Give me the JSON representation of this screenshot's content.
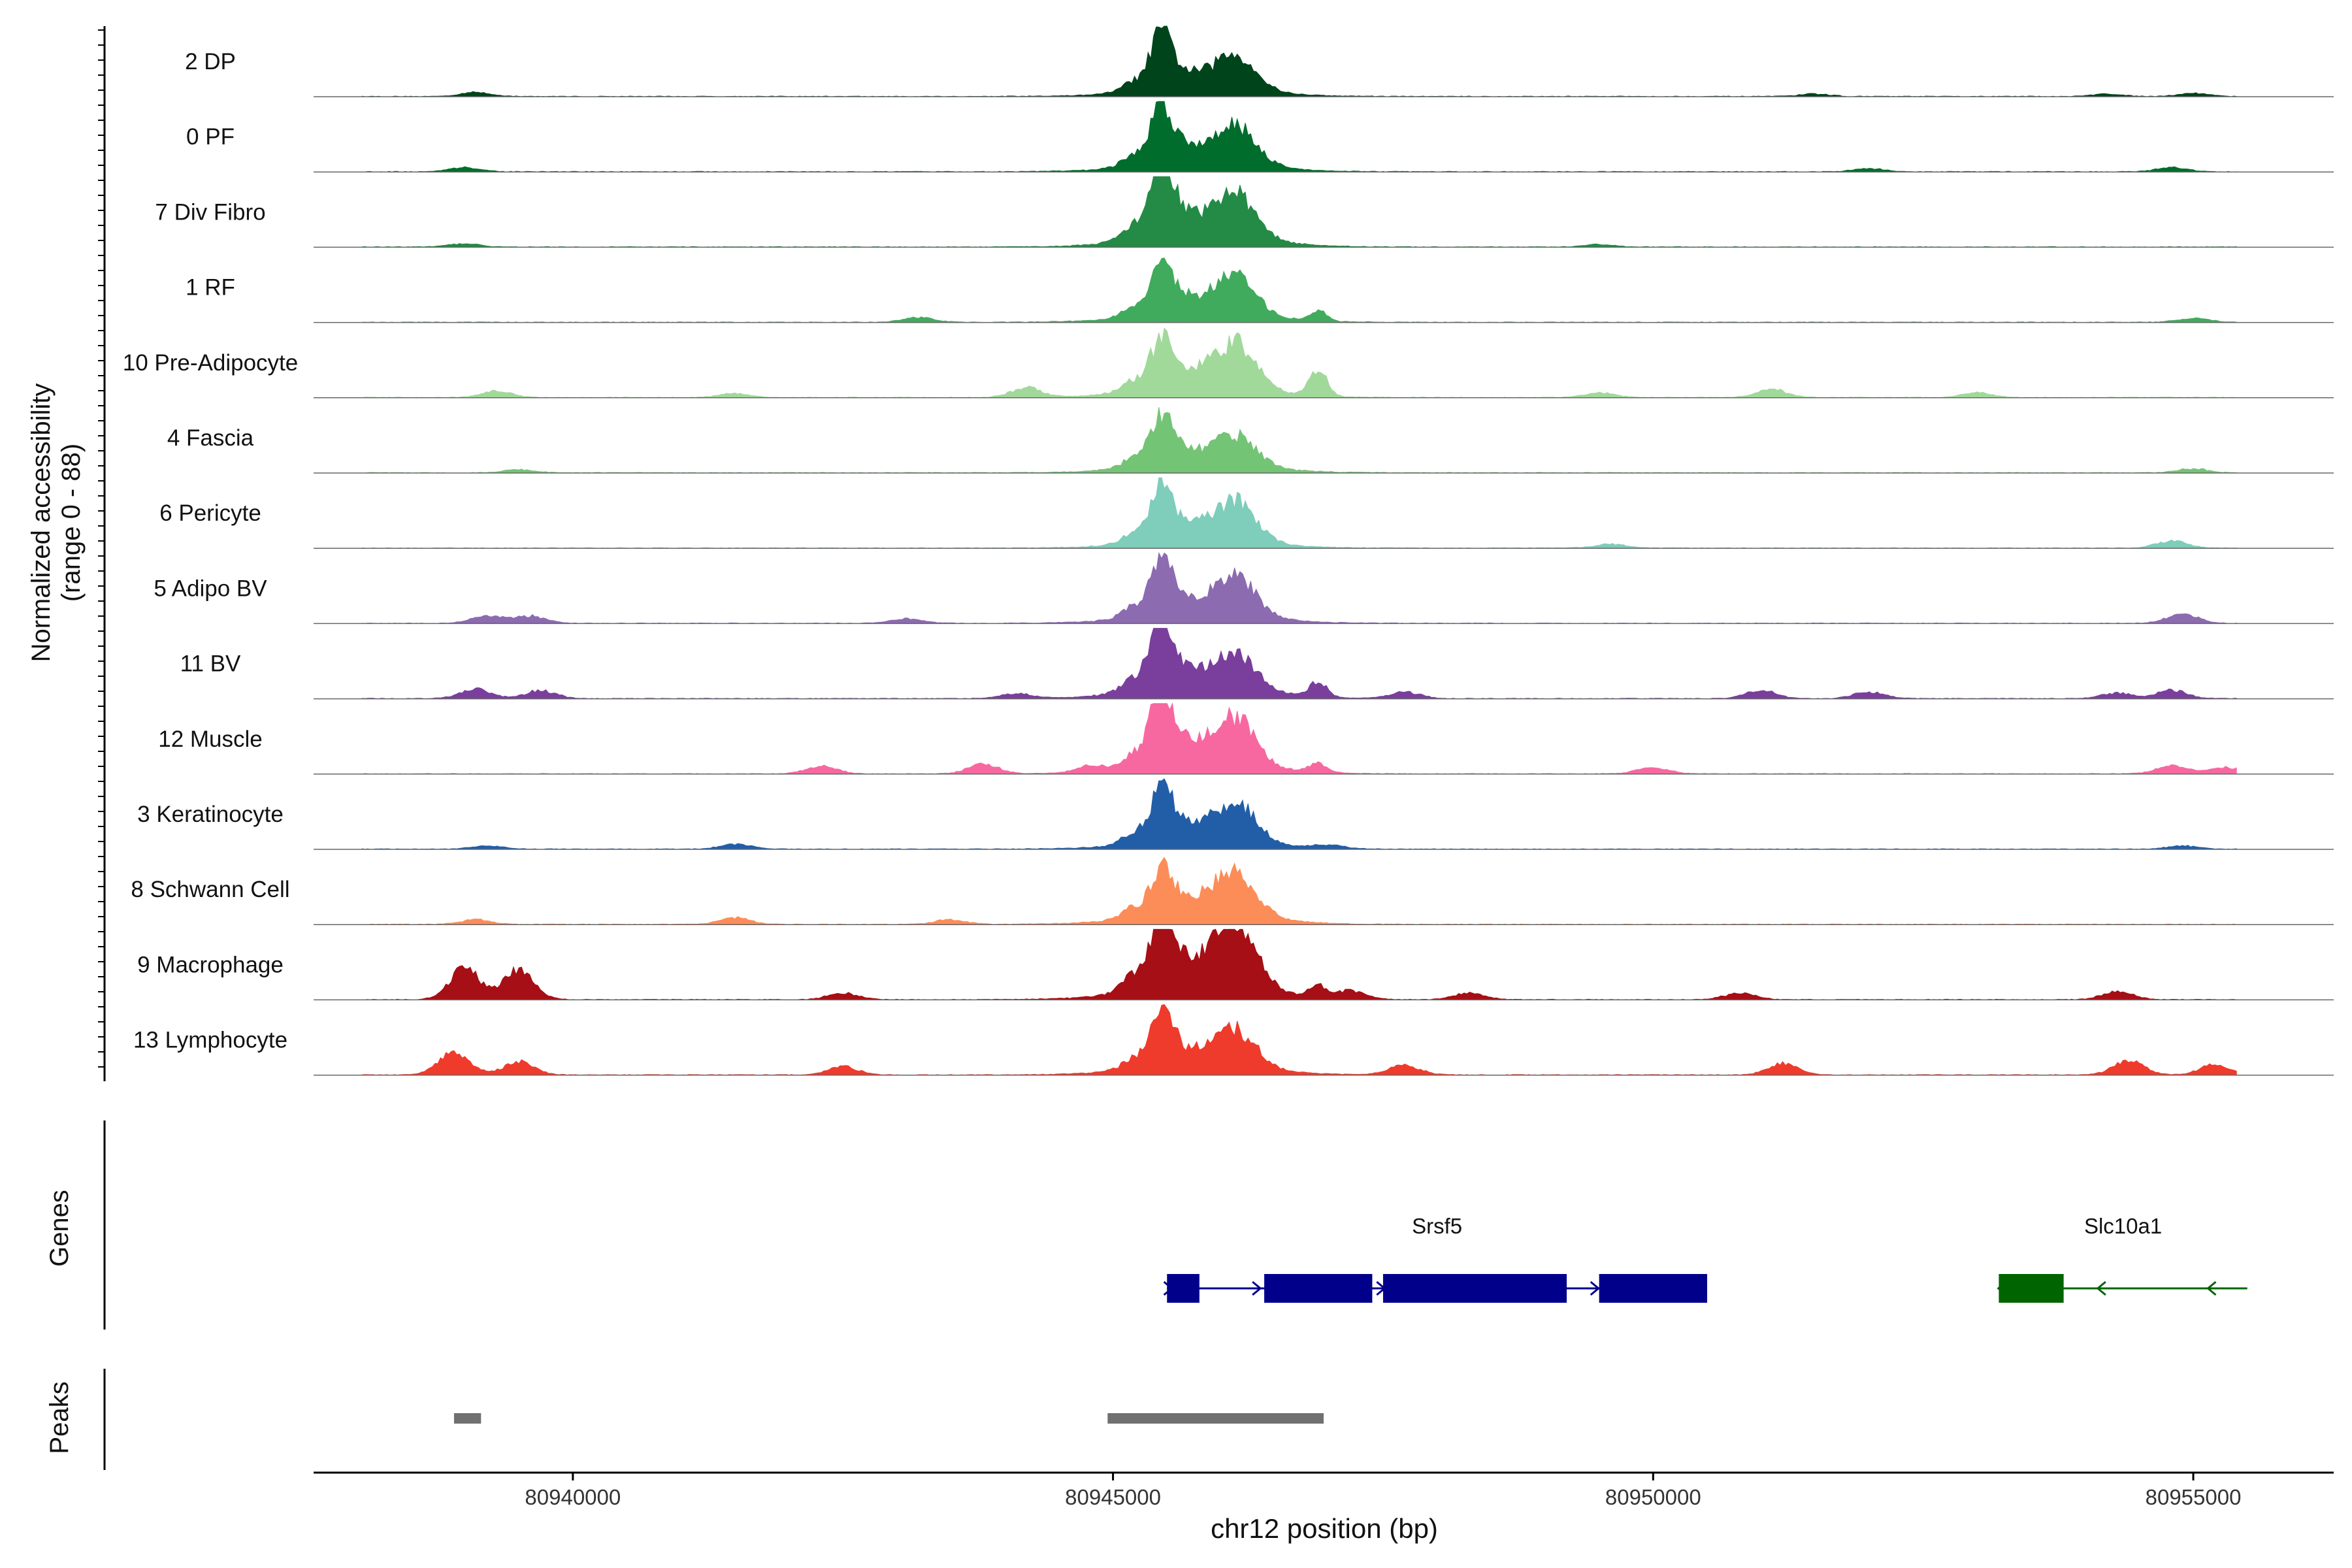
{
  "chart_data": {
    "type": "area",
    "xlabel": "chr12 position (bp)",
    "ylabel": "Normalized accessibility",
    "ylabel_range": "(range 0 - 88)",
    "y_range": [
      0,
      88
    ],
    "xlim": [
      80937600,
      80956300
    ],
    "x_ticks": [
      {
        "value": 80940000,
        "label": "80940000"
      },
      {
        "value": 80945000,
        "label": "80945000"
      },
      {
        "value": 80950000,
        "label": "80950000"
      },
      {
        "value": 80955000,
        "label": "80955000"
      }
    ],
    "track_start": 80938050,
    "track_end": 80955400,
    "bin_size": 25,
    "main_peaks": [
      {
        "start": 80945000,
        "end": 80946900
      },
      {
        "start": 80938900,
        "end": 80939200
      }
    ],
    "tracks": [
      {
        "name": "2 DP",
        "color": "#00441b",
        "heights": {
          "p1": 60,
          "p2": 46,
          "p3": 0,
          "base": 12
        },
        "bumps": [
          {
            "x": 80939100,
            "h": 5
          },
          {
            "x": 80951500,
            "h": 3
          },
          {
            "x": 80954200,
            "h": 3
          },
          {
            "x": 80955000,
            "h": 4
          }
        ]
      },
      {
        "name": "0 PF",
        "color": "#006d2c",
        "heights": {
          "p1": 62,
          "p2": 52,
          "p3": 0,
          "base": 14
        },
        "bumps": [
          {
            "x": 80939000,
            "h": 5
          },
          {
            "x": 80952000,
            "h": 4
          },
          {
            "x": 80954800,
            "h": 5
          }
        ]
      },
      {
        "name": "7 Div Fibro",
        "color": "#238b45",
        "heights": {
          "p1": 88,
          "p2": 58,
          "p3": 0,
          "base": 18
        },
        "bumps": [
          {
            "x": 80939000,
            "h": 4
          },
          {
            "x": 80949500,
            "h": 3
          }
        ]
      },
      {
        "name": "1 RF",
        "color": "#41ab5d",
        "heights": {
          "p1": 58,
          "p2": 50,
          "p3": 12,
          "base": 14
        },
        "bumps": [
          {
            "x": 80943200,
            "h": 6
          },
          {
            "x": 80955000,
            "h": 5
          }
        ]
      },
      {
        "name": "10 Pre-Adipocyte",
        "color": "#a1d99b",
        "heights": {
          "p1": 50,
          "p2": 58,
          "p3": 32,
          "base": 18
        },
        "bumps": [
          {
            "x": 80939300,
            "h": 8
          },
          {
            "x": 80941500,
            "h": 5
          },
          {
            "x": 80944200,
            "h": 12
          },
          {
            "x": 80949500,
            "h": 6
          },
          {
            "x": 80951100,
            "h": 10
          },
          {
            "x": 80953000,
            "h": 6
          }
        ]
      },
      {
        "name": "4 Fascia",
        "color": "#74c476",
        "heights": {
          "p1": 52,
          "p2": 40,
          "p3": 0,
          "base": 14
        },
        "bumps": [
          {
            "x": 80939500,
            "h": 4
          },
          {
            "x": 80955000,
            "h": 5
          }
        ]
      },
      {
        "name": "6 Pericyte",
        "color": "#7fcdbb",
        "heights": {
          "p1": 58,
          "p2": 52,
          "p3": 0,
          "base": 12
        },
        "bumps": [
          {
            "x": 80949600,
            "h": 5
          },
          {
            "x": 80954800,
            "h": 9
          }
        ]
      },
      {
        "name": "5 Adipo BV",
        "color": "#8c6bb1",
        "heights": {
          "p1": 55,
          "p2": 50,
          "p3": 0,
          "base": 16
        },
        "bumps": [
          {
            "x": 80939200,
            "h": 10
          },
          {
            "x": 80939600,
            "h": 9
          },
          {
            "x": 80943100,
            "h": 6
          },
          {
            "x": 80954900,
            "h": 12
          }
        ]
      },
      {
        "name": "11 BV",
        "color": "#7a3f9d",
        "heights": {
          "p1": 78,
          "p2": 45,
          "p3": 18,
          "base": 20
        },
        "bumps": [
          {
            "x": 80939100,
            "h": 12
          },
          {
            "x": 80939700,
            "h": 10
          },
          {
            "x": 80944100,
            "h": 6
          },
          {
            "x": 80947700,
            "h": 8
          },
          {
            "x": 80951000,
            "h": 10
          },
          {
            "x": 80952000,
            "h": 8
          },
          {
            "x": 80954300,
            "h": 7
          },
          {
            "x": 80954800,
            "h": 10
          }
        ]
      },
      {
        "name": "12 Muscle",
        "color": "#f768a1",
        "heights": {
          "p1": 82,
          "p2": 62,
          "p3": 12,
          "base": 16
        },
        "bumps": [
          {
            "x": 80942300,
            "h": 10
          },
          {
            "x": 80943800,
            "h": 12
          },
          {
            "x": 80944800,
            "h": 8
          },
          {
            "x": 80950000,
            "h": 8
          },
          {
            "x": 80954800,
            "h": 10
          },
          {
            "x": 80955300,
            "h": 8
          }
        ]
      },
      {
        "name": "3 Keratinocyte",
        "color": "#225ea8",
        "heights": {
          "p1": 58,
          "p2": 52,
          "p3": 0,
          "base": 14
        },
        "bumps": [
          {
            "x": 80939200,
            "h": 4
          },
          {
            "x": 80941500,
            "h": 6
          },
          {
            "x": 80947000,
            "h": 4
          },
          {
            "x": 80954900,
            "h": 4
          }
        ]
      },
      {
        "name": "8 Schwann Cell",
        "color": "#fc8d59",
        "heights": {
          "p1": 48,
          "p2": 58,
          "p3": 0,
          "base": 18
        },
        "bumps": [
          {
            "x": 80939100,
            "h": 6
          },
          {
            "x": 80941500,
            "h": 8
          },
          {
            "x": 80943500,
            "h": 6
          }
        ]
      },
      {
        "name": "9 Macrophage",
        "color": "#a50f15",
        "heights": {
          "p1": 80,
          "p2": 88,
          "p3": 14,
          "base": 24
        },
        "bumps": [
          {
            "x": 80939000,
            "h": 38
          },
          {
            "x": 80939500,
            "h": 36
          },
          {
            "x": 80942500,
            "h": 8
          },
          {
            "x": 80947200,
            "h": 10
          },
          {
            "x": 80948300,
            "h": 8
          },
          {
            "x": 80950800,
            "h": 8
          },
          {
            "x": 80954300,
            "h": 10
          }
        ]
      },
      {
        "name": "13 Lymphocyte",
        "color": "#ef3b2c",
        "heights": {
          "p1": 58,
          "p2": 48,
          "p3": 0,
          "base": 16
        },
        "bumps": [
          {
            "x": 80938900,
            "h": 30
          },
          {
            "x": 80939500,
            "h": 16
          },
          {
            "x": 80942500,
            "h": 10
          },
          {
            "x": 80947700,
            "h": 12
          },
          {
            "x": 80951200,
            "h": 14
          },
          {
            "x": 80954400,
            "h": 18
          },
          {
            "x": 80955200,
            "h": 12
          }
        ]
      }
    ],
    "genes": {
      "label": "Genes",
      "items": [
        {
          "name": "Srsf5",
          "color": "#00008b",
          "strand": "+",
          "start": 80945500,
          "end": 80950500,
          "exons": [
            [
              80945500,
              80945800
            ],
            [
              80946400,
              80947400
            ],
            [
              80947500,
              80949200
            ],
            [
              80949500,
              80950500
            ]
          ]
        },
        {
          "name": "Slc10a1",
          "color": "#006400",
          "strand": "-",
          "start": 80953200,
          "end": 80955500,
          "exons": [
            [
              80953200,
              80953800
            ]
          ]
        }
      ]
    },
    "peaks": {
      "label": "Peaks",
      "color": "#707070",
      "regions": [
        [
          80938900,
          80939150
        ],
        [
          80944950,
          80946950
        ]
      ]
    }
  }
}
